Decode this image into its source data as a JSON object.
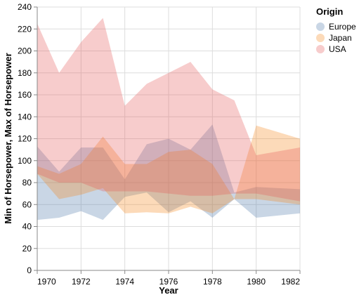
{
  "chart_data": {
    "type": "area-range",
    "x_title": "Year",
    "y_title": "Min of Horsepower, Max of Horsepower",
    "legend_title": "Origin",
    "legend_position": "right",
    "grid": true,
    "opacity": 0.3,
    "x": [
      1970,
      1971,
      1972,
      1973,
      1974,
      1975,
      1976,
      1977,
      1978,
      1979,
      1980,
      1982
    ],
    "xlim": [
      1970,
      1982
    ],
    "xticks": [
      1970,
      1972,
      1974,
      1976,
      1978,
      1980,
      1982
    ],
    "ylim": [
      0,
      240
    ],
    "yticks": [
      0,
      20,
      40,
      60,
      80,
      100,
      120,
      140,
      160,
      180,
      200,
      220,
      240
    ],
    "series": [
      {
        "name": "Europe",
        "color": "#4c78a8",
        "min": [
          46,
          48,
          54,
          46,
          67,
          71,
          53,
          63,
          48,
          65,
          48,
          52
        ],
        "max": [
          113,
          90,
          112,
          112,
          83,
          115,
          120,
          110,
          133,
          71,
          76,
          74
        ]
      },
      {
        "name": "Japan",
        "color": "#f58518",
        "min": [
          88,
          65,
          69,
          75,
          52,
          53,
          52,
          58,
          52,
          65,
          65,
          60
        ],
        "max": [
          95,
          88,
          97,
          122,
          97,
          97,
          108,
          110,
          97,
          65,
          132,
          120
        ]
      },
      {
        "name": "USA",
        "color": "#e45756",
        "min": [
          88,
          80,
          80,
          72,
          72,
          72,
          70,
          68,
          68,
          70,
          70,
          63
        ],
        "max": [
          225,
          180,
          208,
          230,
          150,
          170,
          180,
          190,
          165,
          155,
          105,
          112
        ]
      }
    ]
  }
}
